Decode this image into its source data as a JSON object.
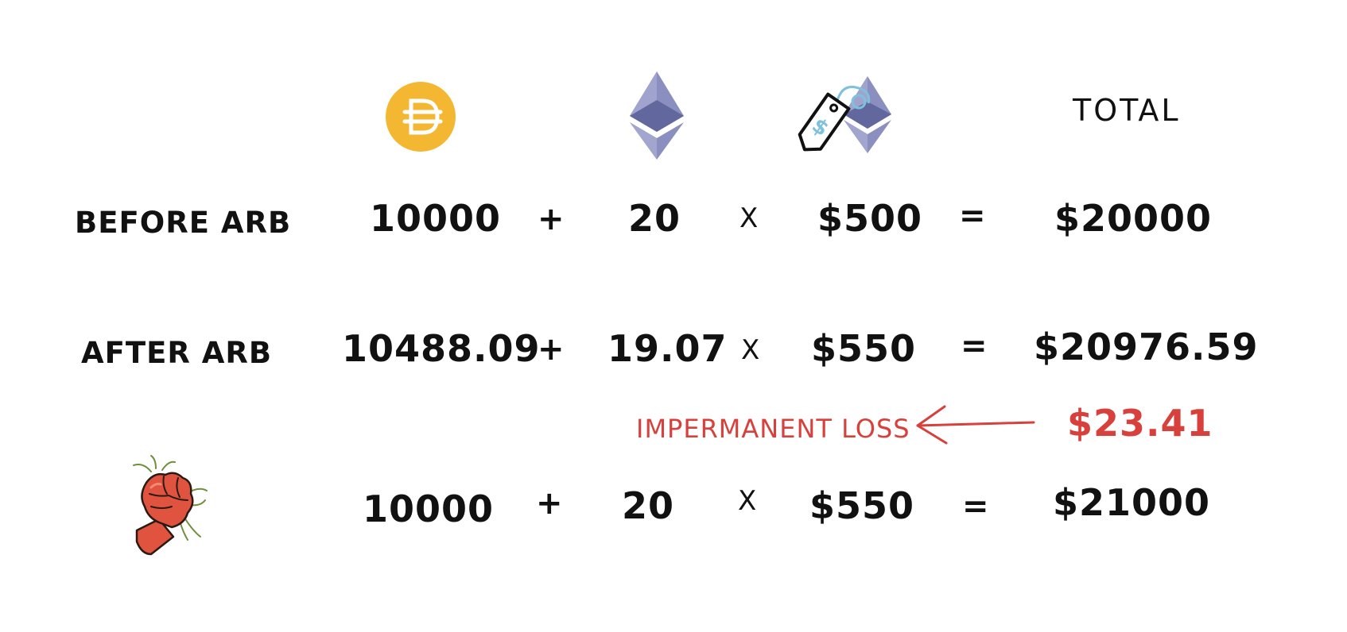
{
  "header": {
    "dai_icon": "dai-coin-icon",
    "eth_icon": "ethereum-icon",
    "eth_price_icon": "price-tag-ethereum-icon",
    "total_label": "TOTAL"
  },
  "rows": [
    {
      "label": "BEFORE ARB",
      "dai": "10000",
      "plus": "+",
      "eth": "20",
      "times": "X",
      "price": "$500",
      "equals": "=",
      "total": "$20000"
    },
    {
      "label": "AFTER ARB",
      "dai": "10488.09",
      "plus": "+",
      "eth": "19.07",
      "times": "X",
      "price": "$550",
      "equals": "=",
      "total": "$20976.59"
    },
    {
      "label_icon": "raised-fist-icon",
      "dai": "10000",
      "plus": "+",
      "eth": "20",
      "times": "X",
      "price": "$550",
      "equals": "=",
      "total": "$21000"
    }
  ],
  "impermanent_loss": {
    "label": "IMPERMANENT LOSS",
    "value": "$23.41",
    "arrow_icon": "left-arrow-icon"
  },
  "colors": {
    "text": "#111111",
    "accent_red": "#d8403c",
    "dai_gold": "#f4b731",
    "eth_purple": "#8a8fbf",
    "tag_blue": "#7fc1dd",
    "fist_red": "#e0533f"
  }
}
